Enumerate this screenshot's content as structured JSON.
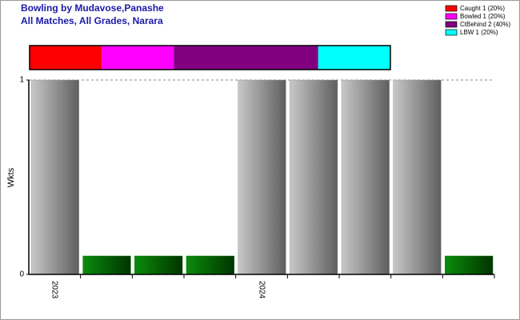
{
  "chart_data": {
    "type": "bar",
    "title": "Bowling by Mudavose,Panashe",
    "subtitle": "All Matches, All Grades, Narara",
    "y_label": "Wkts",
    "categories": [
      "2023",
      null,
      null,
      null,
      "2024",
      null,
      null,
      null,
      null
    ],
    "values": [
      1,
      0,
      0,
      0,
      1,
      1,
      1,
      1,
      0
    ],
    "color": "#999999",
    "zero_color": "#007700",
    "ylim": [
      0,
      1
    ],
    "yticks": [
      0,
      1
    ],
    "grid": true,
    "legend": "top-right",
    "breakdown": {
      "series": [
        {
          "name": "Caught 1 (20%)",
          "color": "#ff0000",
          "value": 20
        },
        {
          "name": "Bowled 1 (20%)",
          "color": "#ff00ff",
          "value": 20
        },
        {
          "name": "CtBehind 2 (40%)",
          "color": "#800080",
          "value": 40
        },
        {
          "name": "LBW 1 (20%)",
          "color": "#00ffff",
          "value": 20
        }
      ]
    }
  }
}
